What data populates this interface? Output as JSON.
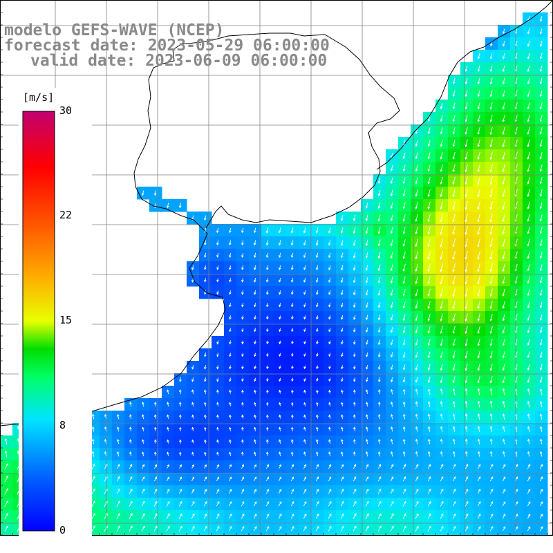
{
  "title": {
    "line1": "modelo GEFS-WAVE (NCEP)",
    "line2": "forecast date: 2023-05-29 06:00:00",
    "line3": "valid date: 2023-06-09 06:00:00"
  },
  "colorbar": {
    "units": "[m/s]",
    "ticks": [
      "30",
      "22",
      "15",
      "8",
      "0"
    ],
    "stops": [
      {
        "value": 0,
        "color": "#0000ff"
      },
      {
        "value": 4,
        "color": "#0066ff"
      },
      {
        "value": 8,
        "color": "#00e5ff"
      },
      {
        "value": 11,
        "color": "#00ff66"
      },
      {
        "value": 13,
        "color": "#00dd00"
      },
      {
        "value": 15,
        "color": "#e8ff00"
      },
      {
        "value": 18,
        "color": "#ffb000"
      },
      {
        "value": 22,
        "color": "#ff5500"
      },
      {
        "value": 26,
        "color": "#ff0000"
      },
      {
        "value": 30,
        "color": "#c00070"
      }
    ]
  },
  "colors": {
    "land": "#ffffff",
    "grid": "#808080",
    "coast": "#000000",
    "arrow": "#ffffff"
  }
}
